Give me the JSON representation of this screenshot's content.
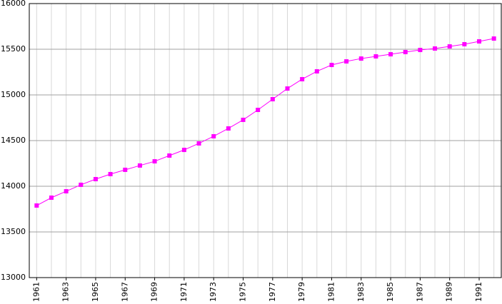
{
  "chart_data": {
    "type": "line",
    "x": [
      1961,
      1962,
      1963,
      1964,
      1965,
      1966,
      1967,
      1968,
      1969,
      1970,
      1971,
      1972,
      1973,
      1974,
      1975,
      1976,
      1977,
      1978,
      1979,
      1980,
      1981,
      1982,
      1983,
      1984,
      1985,
      1986,
      1987,
      1988,
      1989,
      1990,
      1991,
      1992
    ],
    "series": [
      {
        "color": "#ff00ff",
        "values": [
          13789,
          13875,
          13945,
          14016,
          14078,
          14133,
          14180,
          14227,
          14273,
          14336,
          14398,
          14469,
          14547,
          14633,
          14727,
          14836,
          14953,
          15070,
          15172,
          15258,
          15328,
          15367,
          15398,
          15422,
          15445,
          15469,
          15492,
          15508,
          15531,
          15555,
          15586,
          15617
        ]
      }
    ],
    "xlim": [
      1960.5,
      1992.5
    ],
    "xticks": [
      1961,
      1963,
      1965,
      1967,
      1969,
      1971,
      1973,
      1975,
      1977,
      1979,
      1981,
      1983,
      1985,
      1987,
      1989,
      1991
    ],
    "ylim": [
      13000,
      16000
    ],
    "yticks": [
      13000,
      13500,
      14000,
      14500,
      15000,
      15500,
      16000
    ],
    "grid": true
  }
}
